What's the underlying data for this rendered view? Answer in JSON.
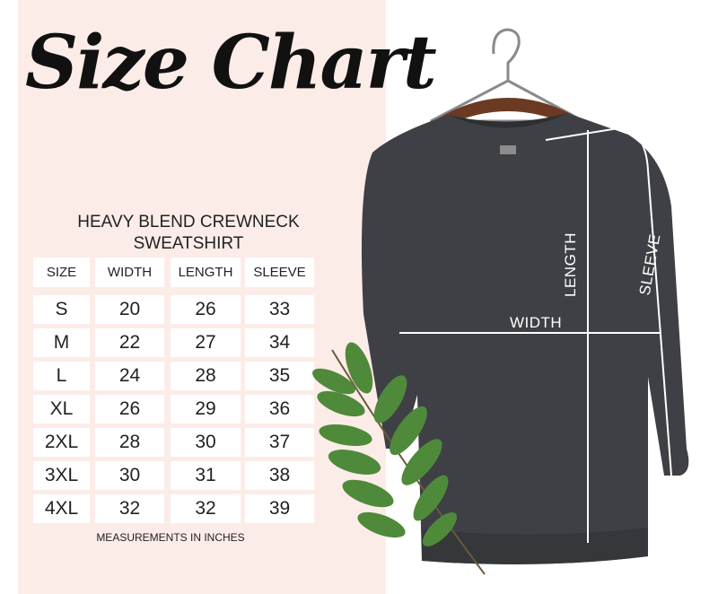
{
  "title": "Size Chart",
  "subtitle_line1": "HEAVY BLEND CREWNECK",
  "subtitle_line2": "SWEATSHIRT",
  "table": {
    "headers": [
      "SIZE",
      "WIDTH",
      "LENGTH",
      "SLEEVE"
    ],
    "rows": [
      [
        "S",
        "20",
        "26",
        "33"
      ],
      [
        "M",
        "22",
        "27",
        "34"
      ],
      [
        "L",
        "24",
        "28",
        "35"
      ],
      [
        "XL",
        "26",
        "29",
        "36"
      ],
      [
        "2XL",
        "28",
        "30",
        "37"
      ],
      [
        "3XL",
        "30",
        "31",
        "38"
      ],
      [
        "4XL",
        "32",
        "32",
        "39"
      ]
    ]
  },
  "note": "MEASUREMENTS IN INCHES",
  "labels": {
    "width": "WIDTH",
    "length": "LENGTH",
    "sleeve": "SLEEVE"
  },
  "colors": {
    "panel": "#fcece8",
    "shirt": "#3f4045",
    "leaf": "#4f8a3a"
  }
}
